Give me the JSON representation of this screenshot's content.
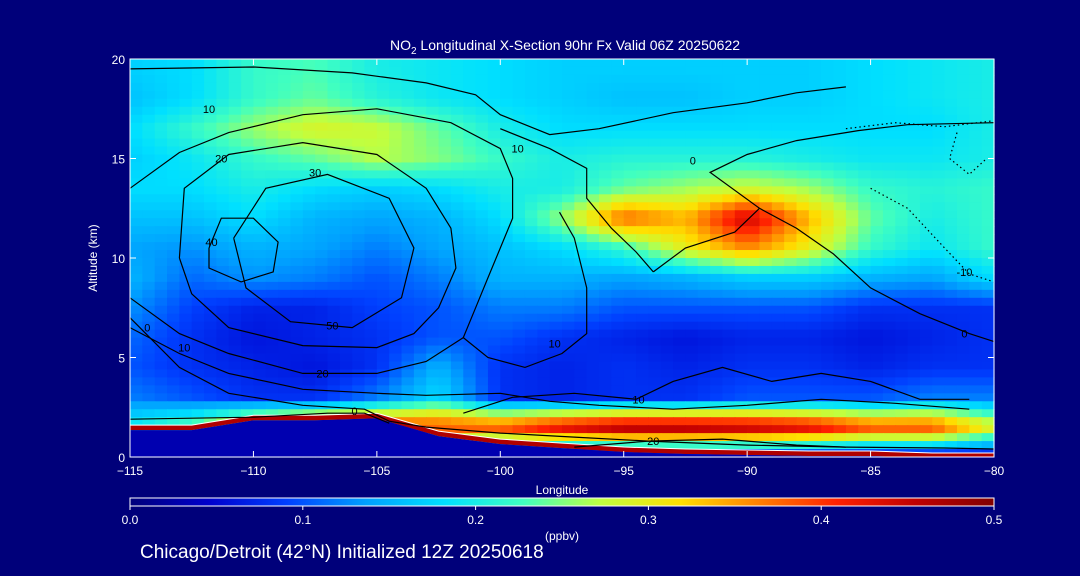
{
  "chart_data": {
    "type": "heatmap",
    "title": {
      "species": "NO",
      "subscript": "2",
      "rest": " Longitudinal X-Section 90hr  Fx Valid 06Z 20250622"
    },
    "xlabel": "Longitude",
    "ylabel": "Altitude (km)",
    "xlim": [
      -115,
      -80
    ],
    "ylim": [
      0,
      20
    ],
    "xticks": [
      -115,
      -110,
      -105,
      -100,
      -95,
      -90,
      -85,
      -80
    ],
    "xtick_labels": [
      "−115",
      "−110",
      "−105",
      "−100",
      "−95",
      "−90",
      "−85",
      "−80"
    ],
    "yticks": [
      0,
      5,
      10,
      15,
      20
    ],
    "ytick_labels": [
      "0",
      "5",
      "10",
      "15",
      "20"
    ],
    "colorbar": {
      "label": "(ppbv)",
      "min": 0.0,
      "max": 0.5,
      "ticks": [
        0.0,
        0.1,
        0.2,
        0.3,
        0.4,
        0.5
      ],
      "tick_labels": [
        "0.0",
        "0.1",
        "0.2",
        "0.3",
        "0.4",
        "0.5"
      ],
      "colormap": [
        "#00007a",
        "#0000cc",
        "#0040ff",
        "#00a0ff",
        "#00e0ff",
        "#40ffc0",
        "#c0ff40",
        "#ffe000",
        "#ff8000",
        "#ff2000",
        "#c00000",
        "#800000"
      ]
    },
    "field": {
      "x": [
        -115,
        -112.5,
        -110,
        -107.5,
        -105,
        -102.5,
        -100,
        -97.5,
        -95,
        -92.5,
        -90,
        -87.5,
        -85,
        -82.5,
        -80
      ],
      "y": [
        0,
        1.5,
        3,
        4.5,
        6,
        7.5,
        9,
        10.5,
        12,
        13.5,
        15,
        16.5,
        18,
        19.5
      ],
      "units": "ppbv",
      "values": [
        [
          0.06,
          0.06,
          0.06,
          0.06,
          0.06,
          0.05,
          0.05,
          0.05,
          0.05,
          0.05,
          0.05,
          0.05,
          0.05,
          0.05,
          0.05
        ],
        [
          0.2,
          0.25,
          0.35,
          0.4,
          0.42,
          0.4,
          0.4,
          0.45,
          0.48,
          0.48,
          0.47,
          0.45,
          0.4,
          0.4,
          0.3
        ],
        [
          0.12,
          0.1,
          0.08,
          0.08,
          0.12,
          0.18,
          0.08,
          0.07,
          0.08,
          0.08,
          0.1,
          0.1,
          0.1,
          0.12,
          0.12
        ],
        [
          0.1,
          0.08,
          0.07,
          0.06,
          0.08,
          0.15,
          0.08,
          0.07,
          0.08,
          0.07,
          0.08,
          0.08,
          0.07,
          0.08,
          0.08
        ],
        [
          0.11,
          0.08,
          0.06,
          0.07,
          0.08,
          0.1,
          0.1,
          0.08,
          0.07,
          0.06,
          0.07,
          0.07,
          0.06,
          0.07,
          0.08
        ],
        [
          0.13,
          0.09,
          0.07,
          0.07,
          0.09,
          0.1,
          0.12,
          0.12,
          0.1,
          0.1,
          0.1,
          0.1,
          0.08,
          0.08,
          0.08
        ],
        [
          0.15,
          0.11,
          0.13,
          0.12,
          0.1,
          0.12,
          0.15,
          0.15,
          0.14,
          0.15,
          0.17,
          0.17,
          0.15,
          0.14,
          0.18
        ],
        [
          0.14,
          0.13,
          0.15,
          0.14,
          0.12,
          0.14,
          0.16,
          0.18,
          0.22,
          0.3,
          0.36,
          0.3,
          0.22,
          0.19,
          0.22
        ],
        [
          0.16,
          0.16,
          0.18,
          0.15,
          0.14,
          0.15,
          0.18,
          0.26,
          0.38,
          0.34,
          0.45,
          0.34,
          0.24,
          0.2,
          0.22
        ],
        [
          0.18,
          0.18,
          0.2,
          0.18,
          0.17,
          0.18,
          0.2,
          0.2,
          0.24,
          0.26,
          0.28,
          0.26,
          0.22,
          0.21,
          0.22
        ],
        [
          0.17,
          0.19,
          0.22,
          0.24,
          0.27,
          0.25,
          0.22,
          0.2,
          0.21,
          0.21,
          0.21,
          0.2,
          0.19,
          0.19,
          0.2
        ],
        [
          0.18,
          0.22,
          0.26,
          0.29,
          0.28,
          0.24,
          0.2,
          0.18,
          0.18,
          0.18,
          0.18,
          0.18,
          0.18,
          0.18,
          0.2
        ],
        [
          0.16,
          0.18,
          0.22,
          0.24,
          0.21,
          0.19,
          0.18,
          0.17,
          0.16,
          0.16,
          0.17,
          0.17,
          0.18,
          0.19,
          0.2
        ],
        [
          0.17,
          0.18,
          0.22,
          0.23,
          0.2,
          0.19,
          0.18,
          0.17,
          0.17,
          0.17,
          0.17,
          0.17,
          0.18,
          0.19,
          0.2
        ]
      ]
    },
    "terrain_km": {
      "lon": [
        -115,
        -112.5,
        -110,
        -107.5,
        -105,
        -102.5,
        -100,
        -97.5,
        -95,
        -92.5,
        -90,
        -87.5,
        -85,
        -82.5,
        -80
      ],
      "alt": [
        1.6,
        1.6,
        2.1,
        2.1,
        2.2,
        1.3,
        0.9,
        0.7,
        0.5,
        0.4,
        0.35,
        0.3,
        0.3,
        0.2,
        0.2
      ]
    },
    "contours": [
      {
        "label": "10",
        "label_at": [
          -111.8,
          17.5
        ],
        "points": [
          [
            -115,
            19.5
          ],
          [
            -110,
            19.6
          ],
          [
            -106,
            19.3
          ],
          [
            -103,
            18.8
          ],
          [
            -101,
            18.2
          ],
          [
            -100,
            17.2
          ],
          [
            -98,
            16.2
          ],
          [
            -96,
            16.5
          ],
          [
            -93,
            17.3
          ],
          [
            -90,
            17.8
          ],
          [
            -88,
            18.3
          ],
          [
            -86,
            18.6
          ]
        ]
      },
      {
        "label": "20",
        "label_at": [
          -111.3,
          15.0
        ],
        "points": [
          [
            -115,
            13.5
          ],
          [
            -113,
            15.3
          ],
          [
            -111,
            16.3
          ],
          [
            -108,
            17.2
          ],
          [
            -105,
            17.5
          ],
          [
            -102,
            16.8
          ],
          [
            -100,
            15.5
          ],
          [
            -99.5,
            14
          ],
          [
            -99.5,
            12
          ],
          [
            -100,
            10.5
          ],
          [
            -100.5,
            9
          ],
          [
            -101,
            7.5
          ],
          [
            -101.5,
            6
          ]
        ]
      },
      {
        "label": "30",
        "label_at": [
          -107.5,
          14.3
        ],
        "points": [
          [
            -113,
            10
          ],
          [
            -112.8,
            13.5
          ],
          [
            -111,
            15.2
          ],
          [
            -108,
            15.8
          ],
          [
            -105,
            15.2
          ],
          [
            -103,
            13.5
          ],
          [
            -102,
            11.5
          ],
          [
            -101.8,
            9.5
          ],
          [
            -102.5,
            7.5
          ],
          [
            -103.5,
            6.2
          ],
          [
            -105,
            5.5
          ],
          [
            -108,
            5.6
          ],
          [
            -111,
            6.5
          ],
          [
            -112.5,
            8.2
          ],
          [
            -113,
            10
          ]
        ]
      },
      {
        "label": "40",
        "label_at": [
          -111.7,
          10.8
        ],
        "points": [
          [
            -111.8,
            10.5
          ],
          [
            -111.3,
            12.0
          ],
          [
            -110,
            12.0
          ],
          [
            -109,
            10.8
          ],
          [
            -109.2,
            9.3
          ],
          [
            -110.5,
            8.8
          ],
          [
            -111.8,
            9.5
          ],
          [
            -111.8,
            10.5
          ]
        ]
      },
      {
        "label": "50",
        "label_at": [
          -106.8,
          6.6
        ],
        "points": [
          [
            -110.8,
            11
          ],
          [
            -109.5,
            13.5
          ],
          [
            -107,
            14.2
          ],
          [
            -104.5,
            13
          ],
          [
            -103.5,
            10.5
          ],
          [
            -104,
            8
          ],
          [
            -106,
            6.5
          ],
          [
            -108.5,
            6.8
          ],
          [
            -110.3,
            8.5
          ],
          [
            -110.8,
            11
          ]
        ]
      },
      {
        "label": "20",
        "label_at": [
          -107.2,
          4.2
        ],
        "points": [
          [
            -115,
            8
          ],
          [
            -113,
            6.2
          ],
          [
            -111,
            5.2
          ],
          [
            -108,
            4.2
          ],
          [
            -105,
            4.2
          ],
          [
            -103,
            4.8
          ],
          [
            -101.5,
            6
          ]
        ]
      },
      {
        "label": "10",
        "label_at": [
          -112.8,
          5.5
        ],
        "points": [
          [
            -115,
            6.5
          ],
          [
            -113,
            5.2
          ],
          [
            -111,
            4.2
          ],
          [
            -108,
            3.4
          ],
          [
            -105,
            3.2
          ],
          [
            -103,
            3.1
          ],
          [
            -100,
            3.2
          ],
          [
            -98,
            2.8
          ],
          [
            -96,
            2.6
          ],
          [
            -93,
            2.4
          ],
          [
            -90,
            2.6
          ],
          [
            -87,
            2.9
          ],
          [
            -84,
            2.7
          ],
          [
            -81,
            2.4
          ]
        ]
      },
      {
        "label": "0",
        "label_at": [
          -114.3,
          6.5
        ],
        "points": [
          [
            -115,
            7
          ],
          [
            -113,
            4.5
          ],
          [
            -111,
            3.2
          ],
          [
            -108,
            2.6
          ],
          [
            -105.5,
            2.4
          ],
          [
            -104.5,
            1.8
          ],
          [
            -103,
            1.5
          ],
          [
            -100,
            1.2
          ],
          [
            -97,
            1.0
          ],
          [
            -94,
            0.8
          ],
          [
            -90,
            0.6
          ],
          [
            -86,
            0.5
          ],
          [
            -82,
            0.45
          ],
          [
            -80,
            0.4
          ]
        ]
      },
      {
        "label": "0",
        "label_at": [
          -105.9,
          2.3
        ],
        "points": [
          [
            -115,
            1.9
          ],
          [
            -110,
            2.0
          ],
          [
            -107,
            2.2
          ],
          [
            -105.5,
            2.2
          ],
          [
            -104.5,
            1.7
          ]
        ]
      },
      {
        "label": "10",
        "label_at": [
          -97.8,
          5.7
        ],
        "points": [
          [
            -101.5,
            6
          ],
          [
            -100.5,
            5
          ],
          [
            -99,
            4.5
          ],
          [
            -97.5,
            5.2
          ],
          [
            -96.5,
            6.2
          ],
          [
            -96.5,
            8.5
          ],
          [
            -97,
            11
          ],
          [
            -97.6,
            12.3
          ]
        ]
      },
      {
        "label": "10",
        "label_at": [
          -94.4,
          2.9
        ],
        "points": [
          [
            -101.5,
            2.2
          ],
          [
            -99.5,
            3.0
          ],
          [
            -97,
            3.2
          ],
          [
            -94.5,
            2.9
          ],
          [
            -93,
            3.8
          ],
          [
            -91,
            4.5
          ],
          [
            -89,
            3.8
          ],
          [
            -87,
            4.2
          ],
          [
            -85,
            3.8
          ],
          [
            -83,
            2.9
          ],
          [
            -81,
            2.9
          ]
        ]
      },
      {
        "label": "10",
        "label_at": [
          -99.3,
          15.5
        ],
        "points": [
          [
            -100,
            16.5
          ],
          [
            -98,
            15.5
          ],
          [
            -96.5,
            14.5
          ],
          [
            -96.5,
            13
          ],
          [
            -95.5,
            11.5
          ],
          [
            -94.5,
            10.3
          ],
          [
            -93.8,
            9.3
          ]
        ]
      },
      {
        "label": "0",
        "label_at": [
          -92.2,
          14.9
        ],
        "points": [
          [
            -93.8,
            9.3
          ],
          [
            -92.5,
            10.5
          ],
          [
            -90.5,
            11.3
          ],
          [
            -89.5,
            12.5
          ],
          [
            -91.5,
            14.3
          ],
          [
            -90,
            15.2
          ],
          [
            -88,
            15.9
          ],
          [
            -85.5,
            16.4
          ],
          [
            -83.5,
            16.7
          ],
          [
            -80,
            16.8
          ]
        ]
      },
      {
        "label": "0",
        "label_at": [
          -81.2,
          6.2
        ],
        "points": [
          [
            -89.5,
            12.5
          ],
          [
            -88,
            11.5
          ],
          [
            -86.5,
            10.2
          ],
          [
            -85,
            8.5
          ],
          [
            -83,
            7.2
          ],
          [
            -81,
            6.2
          ],
          [
            -80,
            5.8
          ]
        ]
      },
      {
        "label": "20",
        "label_at": [
          -93.8,
          0.8
        ],
        "points": [
          [
            -97,
            0.5
          ],
          [
            -94,
            0.8
          ],
          [
            -91,
            0.9
          ],
          [
            -88,
            0.6
          ],
          [
            -86,
            0.5
          ]
        ]
      }
    ],
    "dotted_contours": [
      {
        "label": "-10",
        "label_at": [
          -81.2,
          9.3
        ],
        "points": [
          [
            -85,
            13.5
          ],
          [
            -83.5,
            12.5
          ],
          [
            -82,
            10.5
          ],
          [
            -81,
            9.2
          ],
          [
            -80,
            8.8
          ]
        ]
      },
      {
        "label": "",
        "label_at": null,
        "points": [
          [
            -86,
            16.5
          ],
          [
            -84,
            16.8
          ],
          [
            -82,
            16.6
          ],
          [
            -80,
            16.9
          ]
        ]
      },
      {
        "label": "",
        "label_at": null,
        "points": [
          [
            -81.5,
            16.3
          ],
          [
            -81.8,
            15.0
          ],
          [
            -81.0,
            14.2
          ],
          [
            -80.3,
            15.0
          ]
        ]
      }
    ],
    "footer": "Chicago/Detroit (42°N) Initialized 12Z 20250618"
  }
}
